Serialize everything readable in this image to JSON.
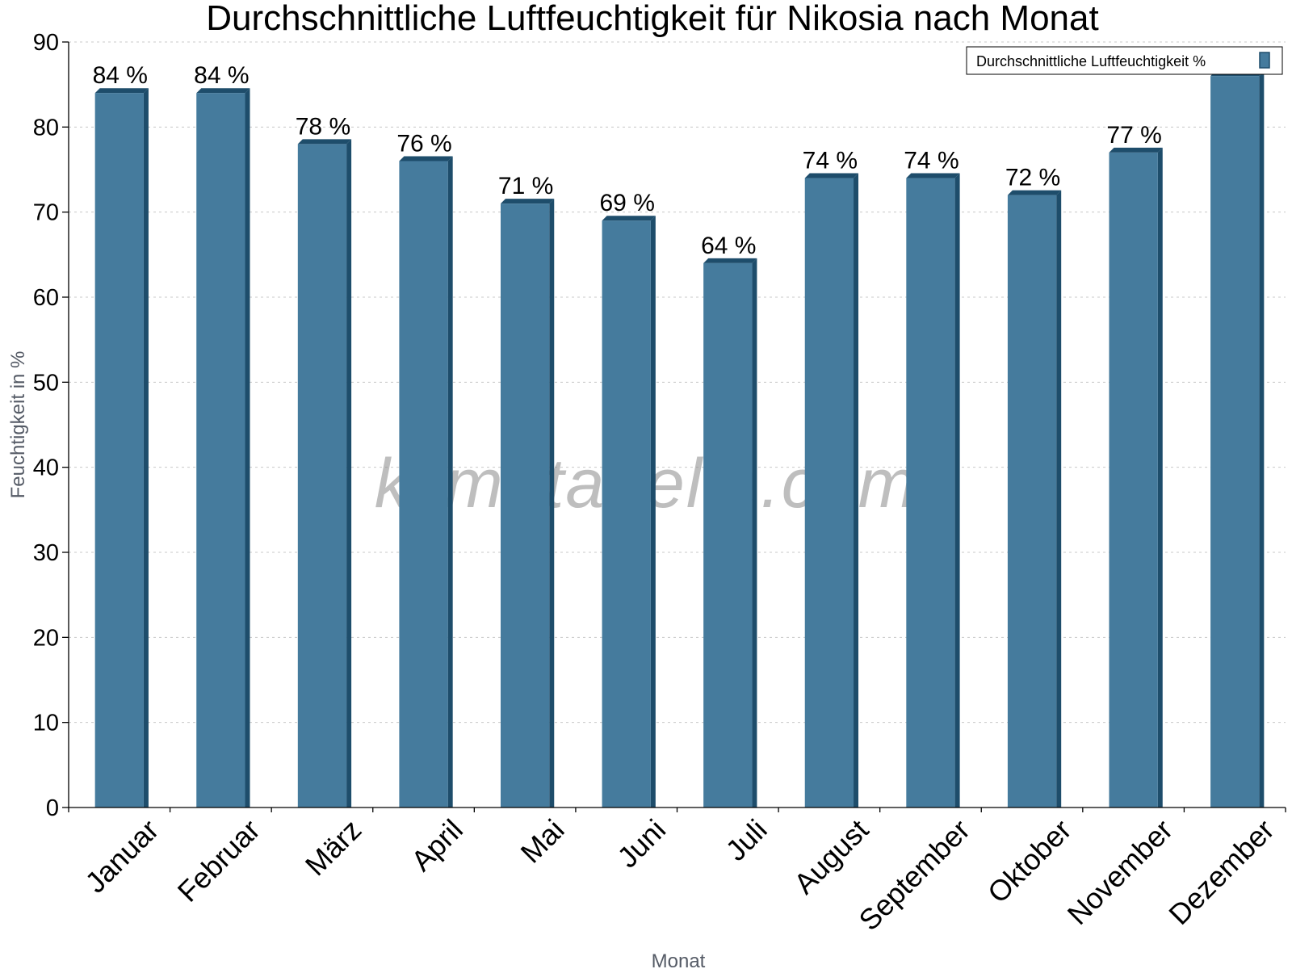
{
  "chart_data": {
    "type": "bar",
    "title": "Durchschnittliche Luftfeuchtigkeit für Nikosia nach Monat",
    "xlabel": "Monat",
    "ylabel": "Feuchtigkeit in %",
    "ylim": [
      0,
      90
    ],
    "yticks": [
      0,
      10,
      20,
      30,
      40,
      50,
      60,
      70,
      80,
      90
    ],
    "grid": true,
    "legend_position": "top-right",
    "categories": [
      "Januar",
      "Februar",
      "März",
      "April",
      "Mai",
      "Juni",
      "Juli",
      "August",
      "September",
      "Oktober",
      "November",
      "Dezember"
    ],
    "series": [
      {
        "name": "Durchschnittliche Luftfeuchtigkeit %",
        "values": [
          84,
          84,
          78,
          76,
          71,
          69,
          64,
          74,
          74,
          72,
          77,
          86
        ],
        "labels": [
          "84 %",
          "84 %",
          "78 %",
          "76 %",
          "71 %",
          "69 %",
          "64 %",
          "74 %",
          "74 %",
          "72 %",
          "77 %",
          ""
        ]
      }
    ],
    "watermark": "klimatabelle.com",
    "colors": {
      "bar_front": "#457b9d",
      "bar_side": "#1e4d6b",
      "bar_top": "#1e4d6b"
    }
  }
}
